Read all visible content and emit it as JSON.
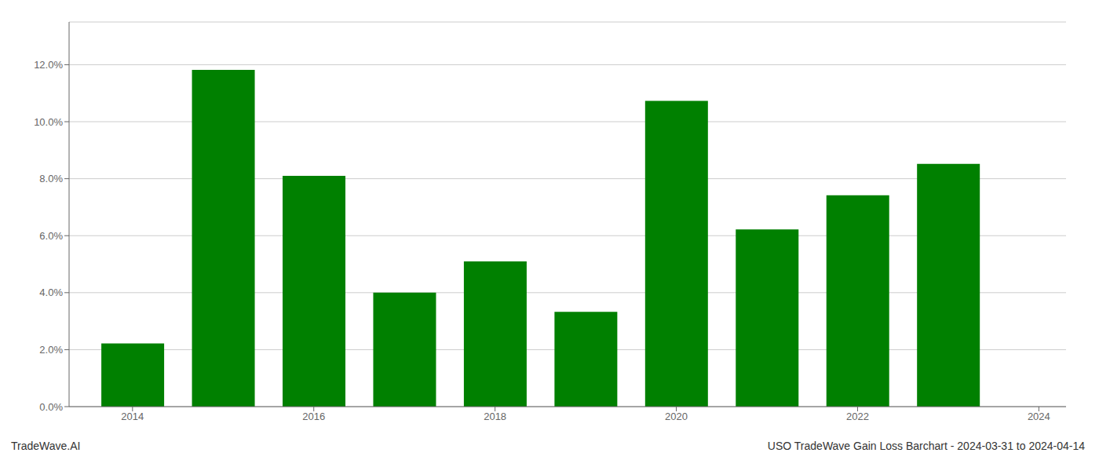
{
  "chart_data": {
    "type": "bar",
    "x": [
      2014,
      2015,
      2016,
      2017,
      2018,
      2019,
      2020,
      2021,
      2022,
      2023
    ],
    "values": [
      0.0222,
      0.1182,
      0.081,
      0.04,
      0.051,
      0.0333,
      0.1073,
      0.0622,
      0.0742,
      0.0852
    ],
    "color": "#008000",
    "xlim": [
      2013.3,
      2024.3
    ],
    "xticks": [
      2014,
      2016,
      2018,
      2020,
      2022,
      2024
    ],
    "ylim": [
      0,
      0.135
    ],
    "yticks": [
      {
        "value": 0,
        "label": "0.0%"
      },
      {
        "value": 0.02,
        "label": "2.0%"
      },
      {
        "value": 0.04,
        "label": "4.0%"
      },
      {
        "value": 0.06,
        "label": "6.0%"
      },
      {
        "value": 0.08,
        "label": "8.0%"
      },
      {
        "value": 0.1,
        "label": "10.0%"
      },
      {
        "value": 0.12,
        "label": "12.0%"
      }
    ],
    "grid": true,
    "annotations": [
      "TradeWave.AI",
      "USO TradeWave Gain Loss Barchart - 2024-03-31 to 2024-04-14"
    ]
  }
}
